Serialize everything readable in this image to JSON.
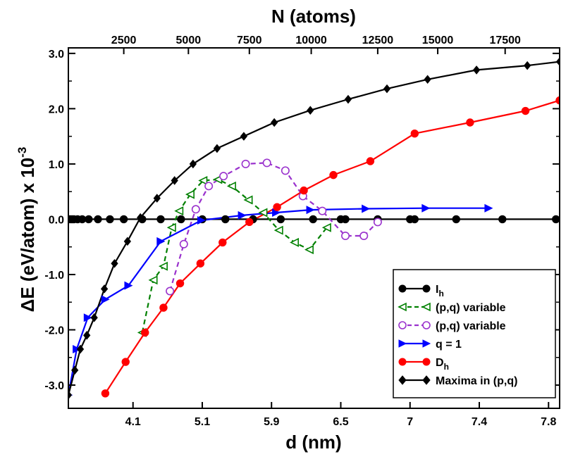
{
  "chart_data": {
    "type": "line",
    "title": "",
    "xlabel": "d (nm)",
    "ylabel": "ΔE (eV/atom) x 10",
    "ylabel_exponent": "-3",
    "top_xlabel": "N (atoms)",
    "xlim": [
      2.6,
      7.92
    ],
    "ylim": [
      -3.42,
      3.1
    ],
    "x_ticks": [
      {
        "value": 3.3,
        "label": "4.1"
      },
      {
        "value": 4.05,
        "label": "5.1"
      },
      {
        "value": 4.8,
        "label": "5.9"
      },
      {
        "value": 5.55,
        "label": "6.5"
      },
      {
        "value": 6.3,
        "label": "7"
      },
      {
        "value": 7.05,
        "label": "7.4"
      },
      {
        "value": 7.8,
        "label": "7.8"
      }
    ],
    "top_ticks": [
      {
        "value": 3.2,
        "label": "2500"
      },
      {
        "value": 3.9,
        "label": "5000"
      },
      {
        "value": 4.56,
        "label": "7500"
      },
      {
        "value": 5.23,
        "label": "10000"
      },
      {
        "value": 5.95,
        "label": "12500"
      },
      {
        "value": 6.6,
        "label": "15000"
      },
      {
        "value": 7.33,
        "label": "17500"
      }
    ],
    "y_ticks": [
      {
        "value": -3.0,
        "label": "-3.0"
      },
      {
        "value": -2.0,
        "label": "-2.0"
      },
      {
        "value": -1.0,
        "label": "-1.0"
      },
      {
        "value": 0.0,
        "label": "0.0"
      },
      {
        "value": 1.0,
        "label": "1.0"
      },
      {
        "value": 2.0,
        "label": "2.0"
      },
      {
        "value": 3.0,
        "label": "3.0"
      }
    ],
    "legend_position": "bottom-right",
    "series": [
      {
        "name": "I",
        "name_sub": "h",
        "color": "#000000",
        "marker": "circle",
        "filled": true,
        "dashed": false,
        "x": [
          2.6,
          2.62,
          2.64,
          2.66,
          2.7,
          2.75,
          2.82,
          2.92,
          3.05,
          3.2,
          3.4,
          3.6,
          3.82,
          4.05,
          4.3,
          4.6,
          4.9,
          5.25,
          5.55,
          5.6,
          5.95,
          6.3,
          6.35,
          6.8,
          7.3,
          7.88
        ],
        "y": [
          0,
          0,
          0,
          0,
          0,
          0,
          0,
          0,
          0,
          0,
          0,
          0,
          0,
          0,
          0,
          0,
          0,
          0,
          0,
          0,
          0,
          0,
          0,
          0,
          0,
          0
        ]
      },
      {
        "name": "(p,q) variable",
        "color": "#008000",
        "marker": "triangle-left",
        "filled": false,
        "dashed": true,
        "x": [
          3.4,
          3.52,
          3.63,
          3.72,
          3.8,
          3.92,
          4.06,
          4.22,
          4.37,
          4.55,
          4.71,
          4.88,
          5.05,
          5.21,
          5.4
        ],
        "y": [
          -2.05,
          -1.1,
          -0.85,
          -0.15,
          0.15,
          0.45,
          0.7,
          0.72,
          0.6,
          0.35,
          0.12,
          -0.2,
          -0.42,
          -0.55,
          -0.15
        ]
      },
      {
        "name": "(p,q) variable",
        "color": "#9a32cd",
        "marker": "circle",
        "filled": false,
        "dashed": true,
        "x": [
          3.7,
          3.85,
          3.98,
          4.12,
          4.28,
          4.52,
          4.75,
          4.95,
          5.14,
          5.35,
          5.6,
          5.8,
          5.95
        ],
        "y": [
          -1.3,
          -0.45,
          0.18,
          0.6,
          0.78,
          1.0,
          1.02,
          0.88,
          0.42,
          0.15,
          -0.3,
          -0.3,
          -0.05
        ]
      },
      {
        "name": "q = 1",
        "color": "#0000ff",
        "marker": "triangle-right",
        "filled": true,
        "dashed": false,
        "x": [
          2.6,
          2.69,
          2.81,
          3.0,
          3.25,
          3.6,
          4.04,
          4.48,
          4.85,
          5.22,
          5.82,
          6.47,
          7.15
        ],
        "y": [
          -3.18,
          -2.35,
          -1.78,
          -1.45,
          -1.2,
          -0.4,
          -0.02,
          0.07,
          0.12,
          0.17,
          0.19,
          0.2,
          0.2
        ]
      },
      {
        "name": "D",
        "name_sub": "h",
        "color": "#ff0000",
        "marker": "circle",
        "filled": true,
        "dashed": false,
        "x": [
          3.0,
          3.22,
          3.43,
          3.63,
          3.81,
          4.03,
          4.27,
          4.56,
          4.86,
          5.15,
          5.47,
          5.87,
          6.35,
          6.95,
          7.55,
          7.92
        ],
        "y": [
          -3.15,
          -2.58,
          -2.05,
          -1.6,
          -1.16,
          -0.8,
          -0.42,
          -0.05,
          0.22,
          0.52,
          0.8,
          1.05,
          1.55,
          1.75,
          1.96,
          2.15
        ]
      },
      {
        "name": "Maxima in (p,q)",
        "color": "#000000",
        "marker": "diamond",
        "filled": true,
        "dashed": false,
        "x": [
          2.6,
          2.67,
          2.73,
          2.8,
          2.88,
          2.99,
          3.1,
          3.24,
          3.38,
          3.56,
          3.75,
          3.95,
          4.21,
          4.5,
          4.83,
          5.22,
          5.63,
          6.05,
          6.49,
          7.02,
          7.57,
          7.92
        ],
        "y": [
          -3.18,
          -2.73,
          -2.35,
          -2.1,
          -1.78,
          -1.26,
          -0.8,
          -0.4,
          0.03,
          0.38,
          0.7,
          1.0,
          1.28,
          1.5,
          1.75,
          1.97,
          2.17,
          2.36,
          2.53,
          2.7,
          2.78,
          2.85
        ]
      }
    ]
  }
}
